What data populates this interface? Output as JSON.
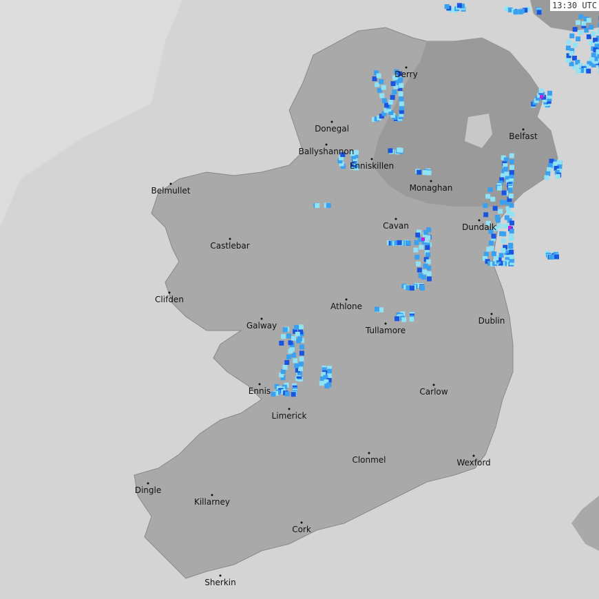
{
  "timestamp": "13:30 UTC",
  "colors": {
    "sea": "#d4d4d4",
    "outside_coverage": "#dcdcdc",
    "land": "#a9a9a9",
    "northern_ireland": "#9a9a9a",
    "rain_light": "#8fe3f5",
    "rain_moderate": "#3aa0f0",
    "rain_heavy": "#1a55e0",
    "rain_intense": "#c020e0"
  },
  "cities": [
    {
      "name": "Derry"
    },
    {
      "name": "Donegal"
    },
    {
      "name": "Ballyshannon"
    },
    {
      "name": "Enniskillen"
    },
    {
      "name": "Belfast"
    },
    {
      "name": "Belmullet"
    },
    {
      "name": "Monaghan"
    },
    {
      "name": "Cavan"
    },
    {
      "name": "Dundalk"
    },
    {
      "name": "Castlebar"
    },
    {
      "name": "Clifden"
    },
    {
      "name": "Athlone"
    },
    {
      "name": "Galway"
    },
    {
      "name": "Tullamore"
    },
    {
      "name": "Dublin"
    },
    {
      "name": "Ennis"
    },
    {
      "name": "Carlow"
    },
    {
      "name": "Limerick"
    },
    {
      "name": "Clonmel"
    },
    {
      "name": "Wexford"
    },
    {
      "name": "Dingle"
    },
    {
      "name": "Killarney"
    },
    {
      "name": "Cork"
    },
    {
      "name": "Sherkin"
    }
  ]
}
